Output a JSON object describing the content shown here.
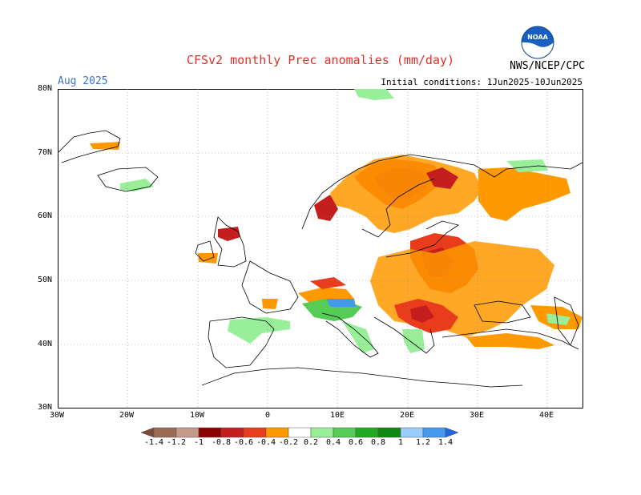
{
  "title": "CFSv2 monthly Prec anomalies (mm/day)",
  "valid_month": "Aug 2025",
  "initial_conditions": "Initial conditions: 1Jun2025-10Jun2025",
  "agency": "NWS/NCEP/CPC",
  "logo_text": "NOAA",
  "lat_labels": [
    "80N",
    "70N",
    "60N",
    "50N",
    "40N",
    "30N"
  ],
  "lon_labels": [
    "30W",
    "20W",
    "10W",
    "0",
    "10E",
    "20E",
    "30E",
    "40E"
  ],
  "colorbar": {
    "labels": [
      "-1.4",
      "-1.2",
      "-1",
      "-0.8",
      "-0.6",
      "-0.4",
      "-0.2",
      "0.2",
      "0.4",
      "0.6",
      "0.8",
      "1",
      "1.2",
      "1.4"
    ],
    "colors": [
      "#7a4a3a",
      "#9c6a55",
      "#c49a8a",
      "#8b0000",
      "#c41e1e",
      "#e83c1c",
      "#ff9900",
      "#ffffff",
      "#99ee99",
      "#55cc55",
      "#22aa22",
      "#118811",
      "#99ccff",
      "#4499ee",
      "#2266dd"
    ]
  },
  "colors": {
    "strong_dry": "#c41e1e",
    "moderate_dry": "#e83c1c",
    "weak_dry": "#ff9900",
    "weak_wet": "#99ee99",
    "moderate_wet": "#55cc55",
    "strong_wet": "#22aa22",
    "very_wet": "#4499ee",
    "title_red": "#e0302a",
    "date_blue": "#3a6fd8"
  }
}
